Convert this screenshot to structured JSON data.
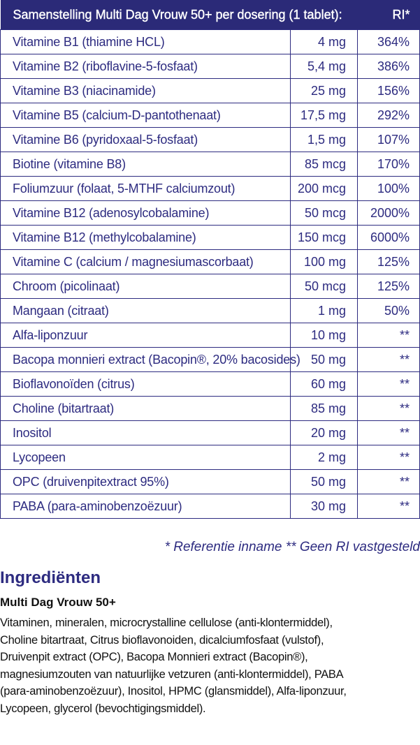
{
  "table": {
    "header": {
      "title": "Samenstelling Multi Dag Vrouw 50+ per dosering (1 tablet):",
      "ri": "RI*"
    },
    "rows": [
      {
        "name": "Vitamine B1 (thiamine HCL)",
        "amount": "4 mg",
        "ri": "364%"
      },
      {
        "name": "Vitamine B2 (riboflavine-5-fosfaat)",
        "amount": "5,4 mg",
        "ri": "386%"
      },
      {
        "name": "Vitamine B3 (niacinamide)",
        "amount": "25 mg",
        "ri": "156%"
      },
      {
        "name": "Vitamine B5 (calcium-D-pantothenaat)",
        "amount": "17,5 mg",
        "ri": "292%"
      },
      {
        "name": "Vitamine B6 (pyridoxaal-5-fosfaat)",
        "amount": "1,5 mg",
        "ri": "107%"
      },
      {
        "name": "Biotine (vitamine B8)",
        "amount": "85 mcg",
        "ri": "170%"
      },
      {
        "name": "Foliumzuur (folaat, 5-MTHF calciumzout)",
        "amount": "200 mcg",
        "ri": "100%"
      },
      {
        "name": "Vitamine B12 (adenosylcobalamine)",
        "amount": "50 mcg",
        "ri": "2000%"
      },
      {
        "name": "Vitamine B12 (methylcobalamine)",
        "amount": "150 mcg",
        "ri": "6000%"
      },
      {
        "name": "Vitamine C (calcium / magnesiumascorbaat)",
        "amount": "100 mg",
        "ri": "125%"
      },
      {
        "name": "Chroom (picolinaat)",
        "amount": "50 mcg",
        "ri": "125%"
      },
      {
        "name": "Mangaan (citraat)",
        "amount": "1 mg",
        "ri": "50%"
      },
      {
        "name": "Alfa-liponzuur",
        "amount": "10 mg",
        "ri": "**"
      },
      {
        "name": "Bacopa monnieri extract (Bacopin®, 20% bacosides)",
        "amount": "50 mg",
        "ri": "**"
      },
      {
        "name": "Bioflavonoïden (citrus)",
        "amount": "60 mg",
        "ri": "**"
      },
      {
        "name": "Choline (bitartraat)",
        "amount": "85 mg",
        "ri": "**"
      },
      {
        "name": "Inositol",
        "amount": "20 mg",
        "ri": "**"
      },
      {
        "name": "Lycopeen",
        "amount": "2 mg",
        "ri": "**"
      },
      {
        "name": "OPC (druivenpitextract 95%)",
        "amount": "50 mg",
        "ri": "**"
      },
      {
        "name": "PABA (para-aminobenzoëzuur)",
        "amount": "30 mg",
        "ri": "**"
      }
    ]
  },
  "footnote": "* Referentie inname  ** Geen RI vastgesteld",
  "ingredients": {
    "title": "Ingrediënten",
    "product": "Multi Dag Vrouw 50+",
    "lines": [
      "Vitaminen, mineralen, microcrystalline cellulose (anti-klontermiddel),",
      "Choline bitartraat, Citrus bioflavonoiden, dicalciumfosfaat (vulstof),",
      "Druivenpit extract (OPC), Bacopa Monnieri extract (Bacopin®),",
      "magnesiumzouten van natuurlijke vetzuren (anti-klontermiddel), PABA",
      "(para-aminobenzoëzuur), Inositol, HPMC (glansmiddel), Alfa-liponzuur,",
      "Lycopeen, glycerol (bevochtigingsmiddel)."
    ]
  },
  "colors": {
    "navy": "#2b2a78",
    "text": "#111111"
  }
}
